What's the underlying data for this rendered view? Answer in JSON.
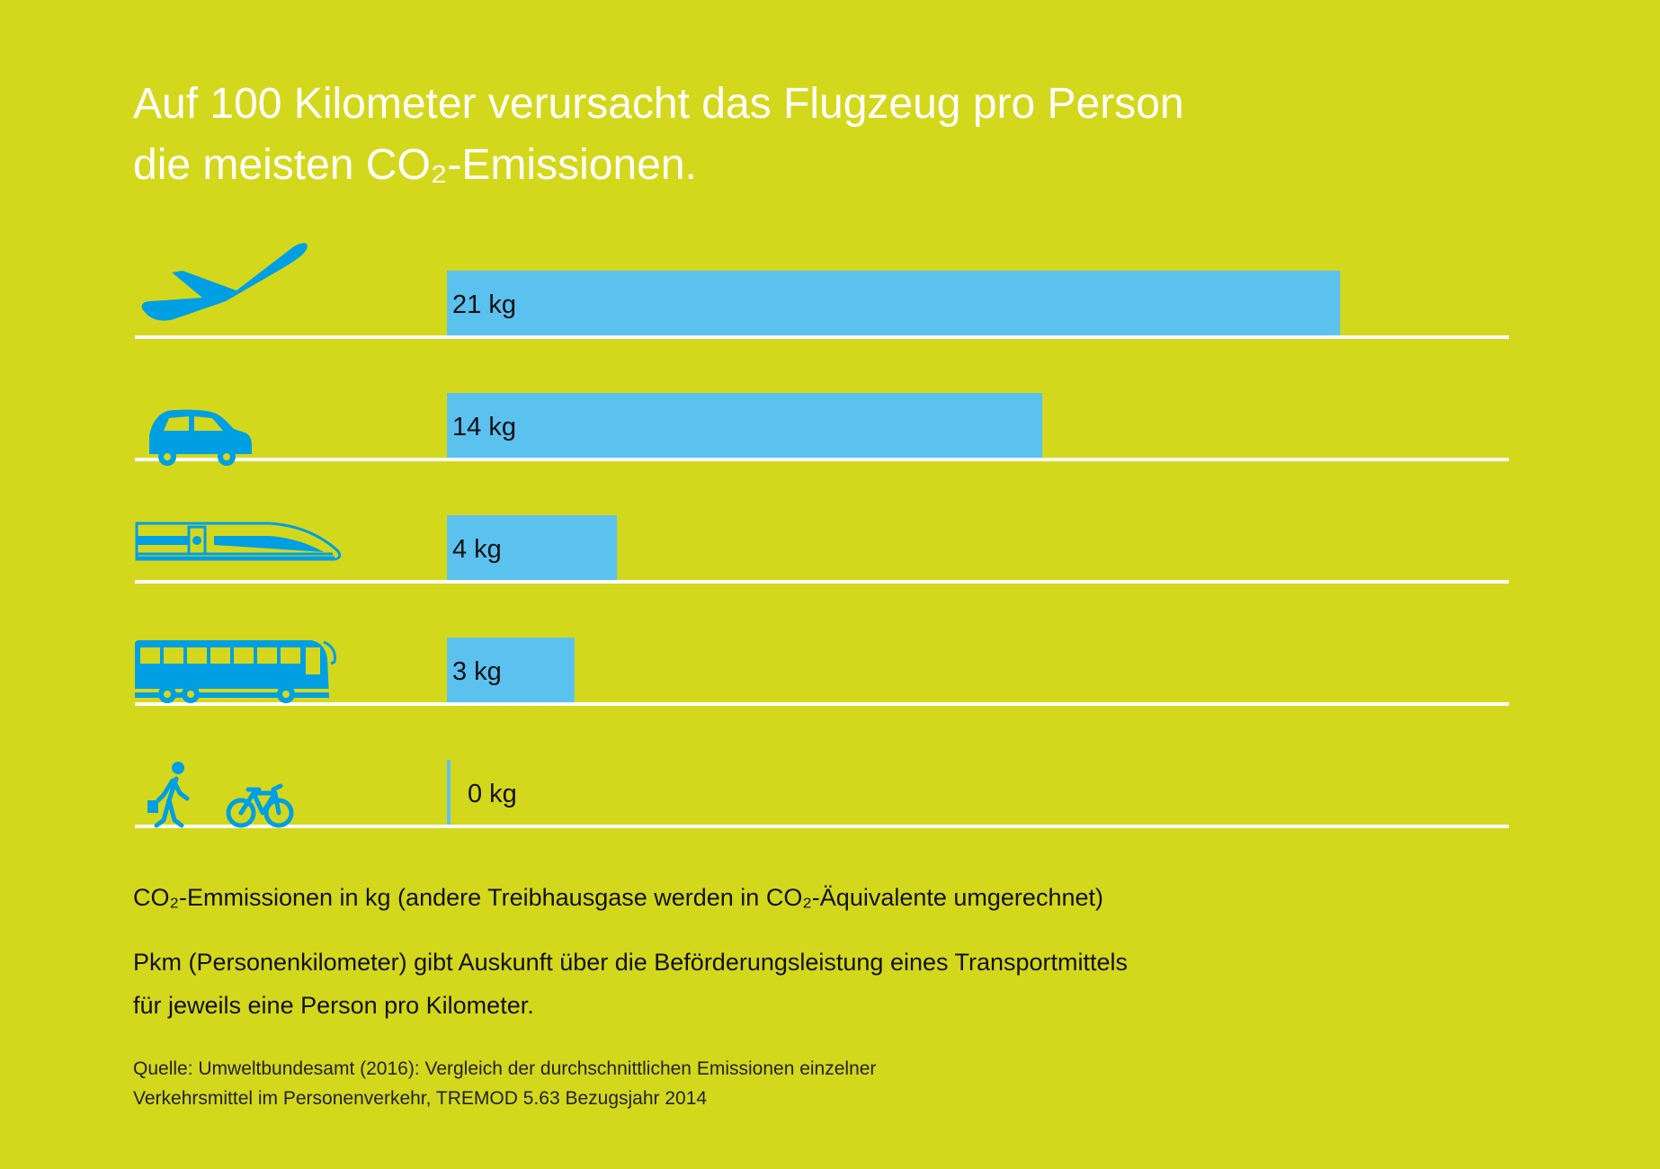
{
  "title": {
    "line1": "Auf 100 Kilometer verursacht das Flugzeug pro Person",
    "line2": "die meisten CO₂-Emissionen."
  },
  "colors": {
    "background": "#d4d81c",
    "bar": "#5bc2f0",
    "icon": "#009fe3",
    "baseline": "#ffffff",
    "title": "#ffffff"
  },
  "chart_data": {
    "type": "bar",
    "orientation": "horizontal",
    "categories": [
      "airplane",
      "car",
      "train",
      "bus",
      "walking-and-cycling"
    ],
    "icons": [
      "airplane-icon",
      "car-icon",
      "train-icon",
      "bus-icon",
      "pedestrian-and-bicycle-icon"
    ],
    "values": [
      21,
      14,
      4,
      3,
      0
    ],
    "unit": "kg",
    "value_labels": [
      "21 kg",
      "14 kg",
      "4 kg",
      "3 kg",
      "0 kg"
    ],
    "xlim": [
      0,
      25
    ]
  },
  "notes": {
    "unit_note": "CO₂-Emmissionen in kg (andere Treibhausgase werden in CO₂-Äquivalente umgerechnet)",
    "pkm_line1": "Pkm (Personenkilometer) gibt Auskunft über die Beförderungsleistung eines Transportmittels",
    "pkm_line2": "für jeweils eine Person pro Kilometer."
  },
  "source": {
    "line1": "Quelle: Umweltbundesamt (2016): Vergleich der durchschnittlichen Emissionen einzelner",
    "line2": "Verkehrsmittel im Personenverkehr, TREMOD 5.63 Bezugsjahr 2014"
  }
}
